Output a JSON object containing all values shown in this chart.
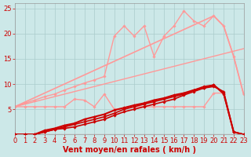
{
  "background_color": "#cce8e8",
  "grid_color": "#aacccc",
  "xlabel": "Vent moyen/en rafales ( km/h )",
  "xlabel_color": "#cc0000",
  "xlabel_fontsize": 7,
  "tick_color": "#cc0000",
  "tick_fontsize": 6,
  "xlim": [
    0,
    23
  ],
  "ylim": [
    0,
    26
  ],
  "yticks": [
    5,
    10,
    15,
    20,
    25
  ],
  "xticks": [
    0,
    1,
    2,
    3,
    4,
    5,
    6,
    7,
    8,
    9,
    10,
    11,
    12,
    13,
    14,
    15,
    16,
    17,
    18,
    19,
    20,
    21,
    22,
    23
  ],
  "series": [
    {
      "x": [
        0,
        23
      ],
      "y": [
        0,
        0
      ],
      "color": "#cc0000",
      "lw": 0.8,
      "marker": null,
      "ms": 0,
      "zorder": 2
    },
    {
      "x": [
        0,
        1,
        2,
        3,
        4,
        5,
        6,
        7,
        8,
        9,
        10,
        11,
        12,
        13,
        14,
        15,
        16,
        17,
        18,
        19,
        20,
        21,
        22,
        23
      ],
      "y": [
        0,
        0,
        0,
        0.5,
        1,
        1.2,
        1.5,
        2,
        2.5,
        3,
        3.8,
        4.5,
        5,
        5.5,
        6,
        6.5,
        7,
        7.8,
        8.5,
        9.2,
        9.5,
        8.5,
        0.5,
        0
      ],
      "color": "#cc0000",
      "lw": 1.2,
      "marker": "D",
      "ms": 1.8,
      "zorder": 3
    },
    {
      "x": [
        0,
        1,
        2,
        3,
        4,
        5,
        6,
        7,
        8,
        9,
        10,
        11,
        12,
        13,
        14,
        15,
        16,
        17,
        18,
        19,
        20,
        21,
        22,
        23
      ],
      "y": [
        0,
        0,
        0,
        0.5,
        1,
        1.5,
        2,
        2.5,
        3,
        3.5,
        4.2,
        5,
        5.5,
        6,
        6.5,
        7,
        7.5,
        8,
        8.8,
        9.5,
        9.8,
        8,
        0.5,
        0
      ],
      "color": "#cc0000",
      "lw": 1.2,
      "marker": "D",
      "ms": 1.8,
      "zorder": 3
    },
    {
      "x": [
        0,
        1,
        2,
        3,
        4,
        5,
        6,
        7,
        8,
        9,
        10,
        11,
        12,
        13,
        14,
        15,
        16,
        17,
        18,
        19,
        20,
        21,
        22,
        23
      ],
      "y": [
        0,
        0,
        0,
        0.8,
        1.2,
        1.8,
        2.2,
        3,
        3.5,
        4,
        4.8,
        5.3,
        5.8,
        6.2,
        6.8,
        7.2,
        7.8,
        8.2,
        8.8,
        9.2,
        9.8,
        8.2,
        0.5,
        0
      ],
      "color": "#cc0000",
      "lw": 1.5,
      "marker": "D",
      "ms": 1.8,
      "zorder": 3
    },
    {
      "x": [
        0,
        1,
        2,
        3,
        4,
        5,
        6,
        7,
        8,
        9,
        10,
        11,
        12,
        13,
        14,
        15,
        16,
        17,
        18,
        19,
        20,
        21
      ],
      "y": [
        5.5,
        5.5,
        5.5,
        5.5,
        5.5,
        5.5,
        7,
        6.8,
        5.5,
        8,
        5,
        5.2,
        5.5,
        5.5,
        5.5,
        5.5,
        5.5,
        5.5,
        5.5,
        5.5,
        8.2,
        8.2
      ],
      "color": "#ff9999",
      "lw": 1.0,
      "marker": "D",
      "ms": 1.8,
      "zorder": 2
    },
    {
      "x": [
        0,
        1,
        2,
        3,
        4,
        5,
        6,
        7,
        8,
        9,
        10,
        11,
        12,
        13,
        14,
        15,
        16,
        17,
        18,
        19,
        20,
        21,
        22,
        23
      ],
      "y": [
        5.5,
        6,
        6.5,
        7,
        7.5,
        8,
        8.5,
        9,
        9.5,
        10,
        10.5,
        11,
        11.5,
        12,
        12.5,
        13,
        13.5,
        14,
        14.5,
        15,
        15.5,
        16,
        16.5,
        17
      ],
      "color": "#ff9999",
      "lw": 1.0,
      "marker": null,
      "ms": 0,
      "zorder": 2
    },
    {
      "x": [
        0,
        1,
        2,
        3,
        4,
        5,
        6,
        7,
        8,
        9,
        10,
        11,
        12,
        13,
        14,
        15,
        16,
        17,
        18,
        19,
        20,
        21,
        22,
        23
      ],
      "y": [
        5.5,
        6.2,
        6.8,
        7.5,
        8,
        8.8,
        9.5,
        10.2,
        10.8,
        11.5,
        19.5,
        21.5,
        19.5,
        21.5,
        15.5,
        19.5,
        21.5,
        24.5,
        22.5,
        21.5,
        23.5,
        21.5,
        15.5,
        8
      ],
      "color": "#ff9999",
      "lw": 1.0,
      "marker": "D",
      "ms": 1.8,
      "zorder": 2
    },
    {
      "x": [
        0,
        20,
        21,
        22,
        23
      ],
      "y": [
        5.5,
        23.5,
        21.5,
        15.5,
        8
      ],
      "color": "#ff9999",
      "lw": 1.2,
      "marker": null,
      "ms": 0,
      "zorder": 2
    }
  ]
}
